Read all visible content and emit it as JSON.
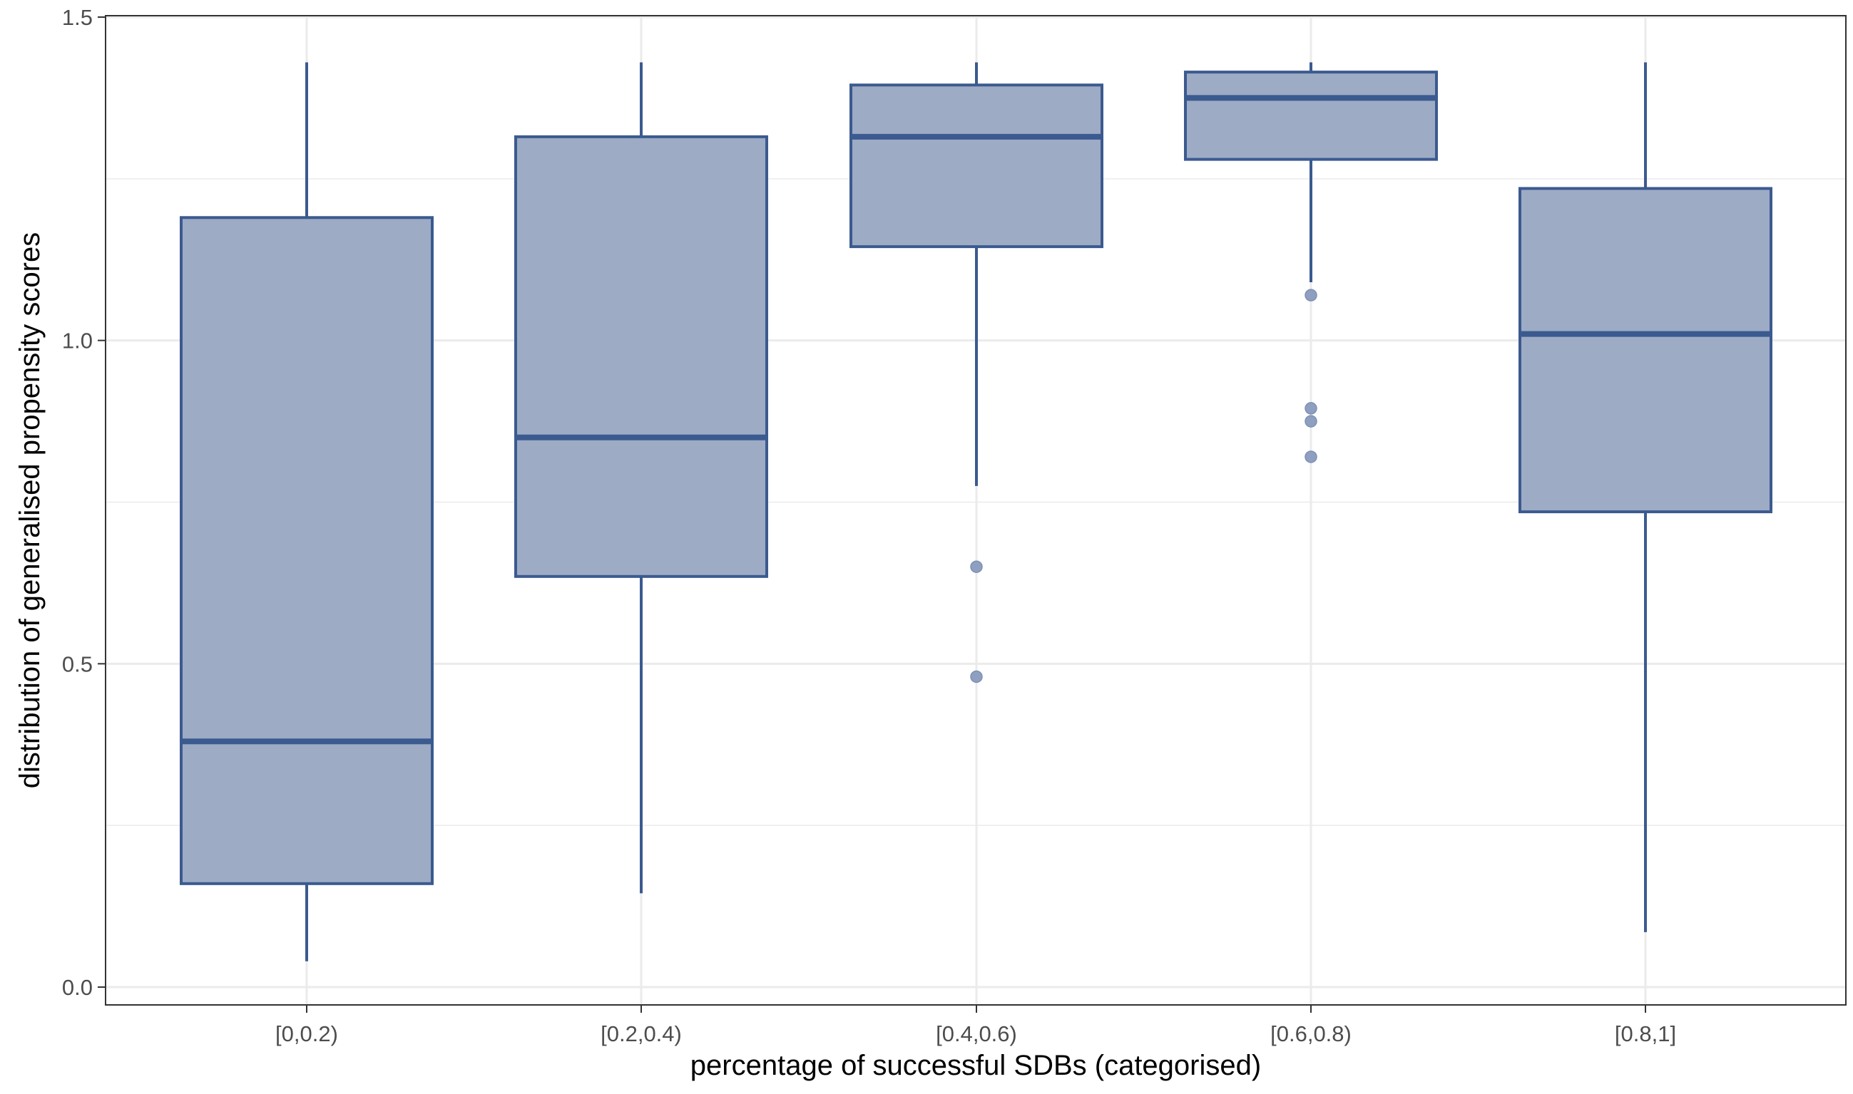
{
  "chart_data": {
    "type": "box",
    "xlabel": "percentage of successful SDBs (categorised)",
    "ylabel": "distribution of generalised propensity scores",
    "ylim": [
      -0.03,
      1.5
    ],
    "yticks": [
      0.0,
      0.5,
      1.0,
      1.5
    ],
    "ytick_labels": [
      "0.0",
      "0.5",
      "1.0",
      "1.5"
    ],
    "grid": true,
    "categories": [
      "[0,0.2)",
      "[0.2,0.4)",
      "[0.4,0.6)",
      "[0.6,0.8)",
      "[0.8,1]"
    ],
    "boxes": [
      {
        "category": "[0,0.2)",
        "whisker_low": 0.04,
        "q1": 0.16,
        "median": 0.38,
        "q3": 1.19,
        "whisker_high": 1.43,
        "outliers": []
      },
      {
        "category": "[0.2,0.4)",
        "whisker_low": 0.145,
        "q1": 0.635,
        "median": 0.85,
        "q3": 1.315,
        "whisker_high": 1.43,
        "outliers": []
      },
      {
        "category": "[0.4,0.6)",
        "whisker_low": 0.775,
        "q1": 1.145,
        "median": 1.315,
        "q3": 1.395,
        "whisker_high": 1.43,
        "outliers": [
          0.65,
          0.48
        ]
      },
      {
        "category": "[0.6,0.8)",
        "whisker_low": 1.09,
        "q1": 1.28,
        "median": 1.375,
        "q3": 1.415,
        "whisker_high": 1.43,
        "outliers": [
          1.07,
          0.895,
          0.875,
          0.82
        ]
      },
      {
        "category": "[0.8,1]",
        "whisker_low": 0.085,
        "q1": 0.735,
        "median": 1.01,
        "q3": 1.235,
        "whisker_high": 1.43,
        "outliers": []
      }
    ],
    "colors": {
      "fill": "#9dabc5",
      "stroke": "#3b5a8f",
      "outlier": "#8e9fbf",
      "grid": "#ebebeb",
      "panel_border": "#333333"
    }
  }
}
